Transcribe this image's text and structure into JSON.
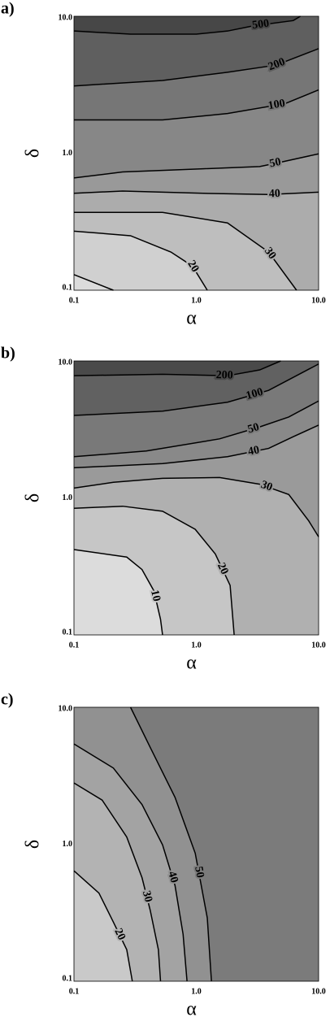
{
  "chart_data": [
    {
      "type": "contour",
      "panel": "a)",
      "xlabel": "α",
      "ylabel": "δ",
      "xscale": "log",
      "yscale": "log",
      "xlim": [
        0.1,
        10
      ],
      "ylim": [
        0.1,
        10
      ],
      "xticks": [
        0.1,
        {
          "value": 1,
          "label": "1.0"
        },
        {
          "value": 10,
          "label": "10.0"
        }
      ],
      "yticks": [
        0.1,
        {
          "value": 1,
          "label": "1.0"
        },
        {
          "value": 10,
          "label": "10.0"
        }
      ],
      "base_fill": "#dcdcdc",
      "line_color": "#000000",
      "contours": [
        {
          "x": [
            0.1,
            0.21
          ],
          "y": [
            0.13,
            0.1
          ],
          "fill": "#d0d0d0"
        },
        {
          "level": 20,
          "x": [
            0.1,
            0.29,
            0.62,
            0.93,
            1.23
          ],
          "y": [
            0.27,
            0.25,
            0.19,
            0.15,
            0.1
          ],
          "fill": "#bebebe"
        },
        {
          "level": 30,
          "x": [
            0.1,
            0.53,
            1.8,
            3.9,
            6.6
          ],
          "y": [
            0.37,
            0.37,
            0.31,
            0.19,
            0.1
          ],
          "fill": "#acacac"
        },
        {
          "level": 40,
          "x": [
            0.1,
            0.25,
            1.14,
            3.9,
            10
          ],
          "y": [
            0.51,
            0.53,
            0.51,
            0.5,
            0.52
          ],
          "fill": "#999999"
        },
        {
          "level": 50,
          "x": [
            0.1,
            0.25,
            1.14,
            3.3,
            4.9,
            10
          ],
          "y": [
            0.66,
            0.73,
            0.77,
            0.8,
            0.86,
            0.99
          ],
          "fill": "#878787"
        },
        {
          "level": 100,
          "x": [
            0.1,
            0.53,
            1.8,
            5.3,
            10
          ],
          "y": [
            1.75,
            1.75,
            1.95,
            2.3,
            2.9
          ],
          "fill": "#767676"
        },
        {
          "level": 200,
          "x": [
            0.1,
            0.53,
            1.8,
            4.5,
            10
          ],
          "y": [
            3.1,
            3.4,
            3.9,
            4.4,
            5.8
          ],
          "fill": "#5f5f5f"
        },
        {
          "level": 500,
          "x": [
            0.1,
            0.29,
            1,
            1.8,
            2.9,
            6.2,
            7.1
          ],
          "y": [
            7.8,
            7.4,
            7.4,
            7.8,
            8.5,
            9.3,
            10
          ],
          "fill": "#474747"
        }
      ]
    },
    {
      "type": "contour",
      "panel": "b)",
      "xlabel": "α",
      "ylabel": "δ",
      "xscale": "log",
      "yscale": "log",
      "xlim": [
        0.1,
        10
      ],
      "ylim": [
        0.1,
        10
      ],
      "xticks": [
        0.1,
        {
          "value": 1,
          "label": "1.0"
        },
        {
          "value": 10,
          "label": "10.0"
        }
      ],
      "yticks": [
        0.1,
        {
          "value": 1,
          "label": "1.0"
        },
        {
          "value": 10,
          "label": "10.0"
        }
      ],
      "base_fill": "#dcdcdc",
      "line_color": "#000000",
      "contours": [
        {
          "level": 10,
          "x": [
            0.1,
            0.27,
            0.36,
            0.45,
            0.51,
            0.53
          ],
          "y": [
            0.42,
            0.37,
            0.3,
            0.21,
            0.13,
            0.1
          ],
          "fill": "#c6c6c6"
        },
        {
          "level": 20,
          "x": [
            0.1,
            0.25,
            0.53,
            0.98,
            1.43,
            1.89,
            2.04
          ],
          "y": [
            0.84,
            0.87,
            0.8,
            0.59,
            0.39,
            0.23,
            0.1
          ],
          "fill": "#b0b0b0"
        },
        {
          "level": 30,
          "x": [
            0.1,
            0.21,
            0.53,
            1.55,
            3.3,
            5.7,
            8.3,
            10
          ],
          "y": [
            1.18,
            1.3,
            1.39,
            1.41,
            1.26,
            1.06,
            0.68,
            0.52
          ],
          "fill": "#9a9a9a"
        },
        {
          "level": 40,
          "x": [
            0.1,
            0.53,
            1.8,
            3.9,
            6.2,
            10
          ],
          "y": [
            1.66,
            1.78,
            2,
            2.3,
            2.8,
            3.4
          ],
          "fill": "#898989"
        },
        {
          "level": 50,
          "x": [
            0.1,
            0.39,
            1.55,
            3.3,
            5.7,
            10
          ],
          "y": [
            2,
            2.2,
            2.7,
            3.3,
            3.9,
            5.1
          ],
          "fill": "#797979"
        },
        {
          "level": 100,
          "x": [
            0.1,
            0.53,
            1.8,
            3.9,
            10
          ],
          "y": [
            4,
            4.3,
            5,
            6.1,
            9.5
          ],
          "fill": "#616161"
        },
        {
          "level": 200,
          "x": [
            0.1,
            0.53,
            1.8,
            3.3,
            4.9
          ],
          "y": [
            7.8,
            8,
            7.8,
            8.6,
            10
          ],
          "fill": "#4a4a4a"
        }
      ]
    },
    {
      "type": "contour",
      "panel": "c)",
      "xlabel": "α",
      "ylabel": "δ",
      "xscale": "log",
      "yscale": "log",
      "xlim": [
        0.1,
        10
      ],
      "ylim": [
        0.1,
        10
      ],
      "xticks": [
        0.1,
        {
          "value": 1,
          "label": "1.0"
        },
        {
          "value": 10,
          "label": "10.0"
        }
      ],
      "yticks": [
        0.1,
        {
          "value": 1,
          "label": "1.0"
        },
        {
          "value": 10,
          "label": "10.0"
        }
      ],
      "base_fill": "#c9c9c9",
      "line_color": "#000000",
      "contours": [
        {
          "level": 20,
          "x": [
            0.1,
            0.16,
            0.21,
            0.27,
            0.3
          ],
          "y": [
            0.64,
            0.44,
            0.27,
            0.17,
            0.1
          ],
          "fill": "#b3b3b3"
        },
        {
          "level": 30,
          "x": [
            0.1,
            0.17,
            0.27,
            0.36,
            0.42,
            0.49,
            0.51
          ],
          "y": [
            2.8,
            2.1,
            1.13,
            0.57,
            0.33,
            0.17,
            0.1
          ],
          "fill": "#a3a3a3"
        },
        {
          "level": 40,
          "x": [
            0.1,
            0.21,
            0.36,
            0.53,
            0.67,
            0.78,
            0.84
          ],
          "y": [
            5.4,
            3.6,
            1.95,
            0.99,
            0.5,
            0.22,
            0.1
          ],
          "fill": "#919191"
        },
        {
          "level": 50,
          "x": [
            0.29,
            0.42,
            0.67,
            0.98,
            1.23,
            1.33
          ],
          "y": [
            10,
            5.1,
            2.2,
            0.86,
            0.29,
            0.1
          ],
          "fill": "#7b7b7b"
        }
      ]
    }
  ]
}
